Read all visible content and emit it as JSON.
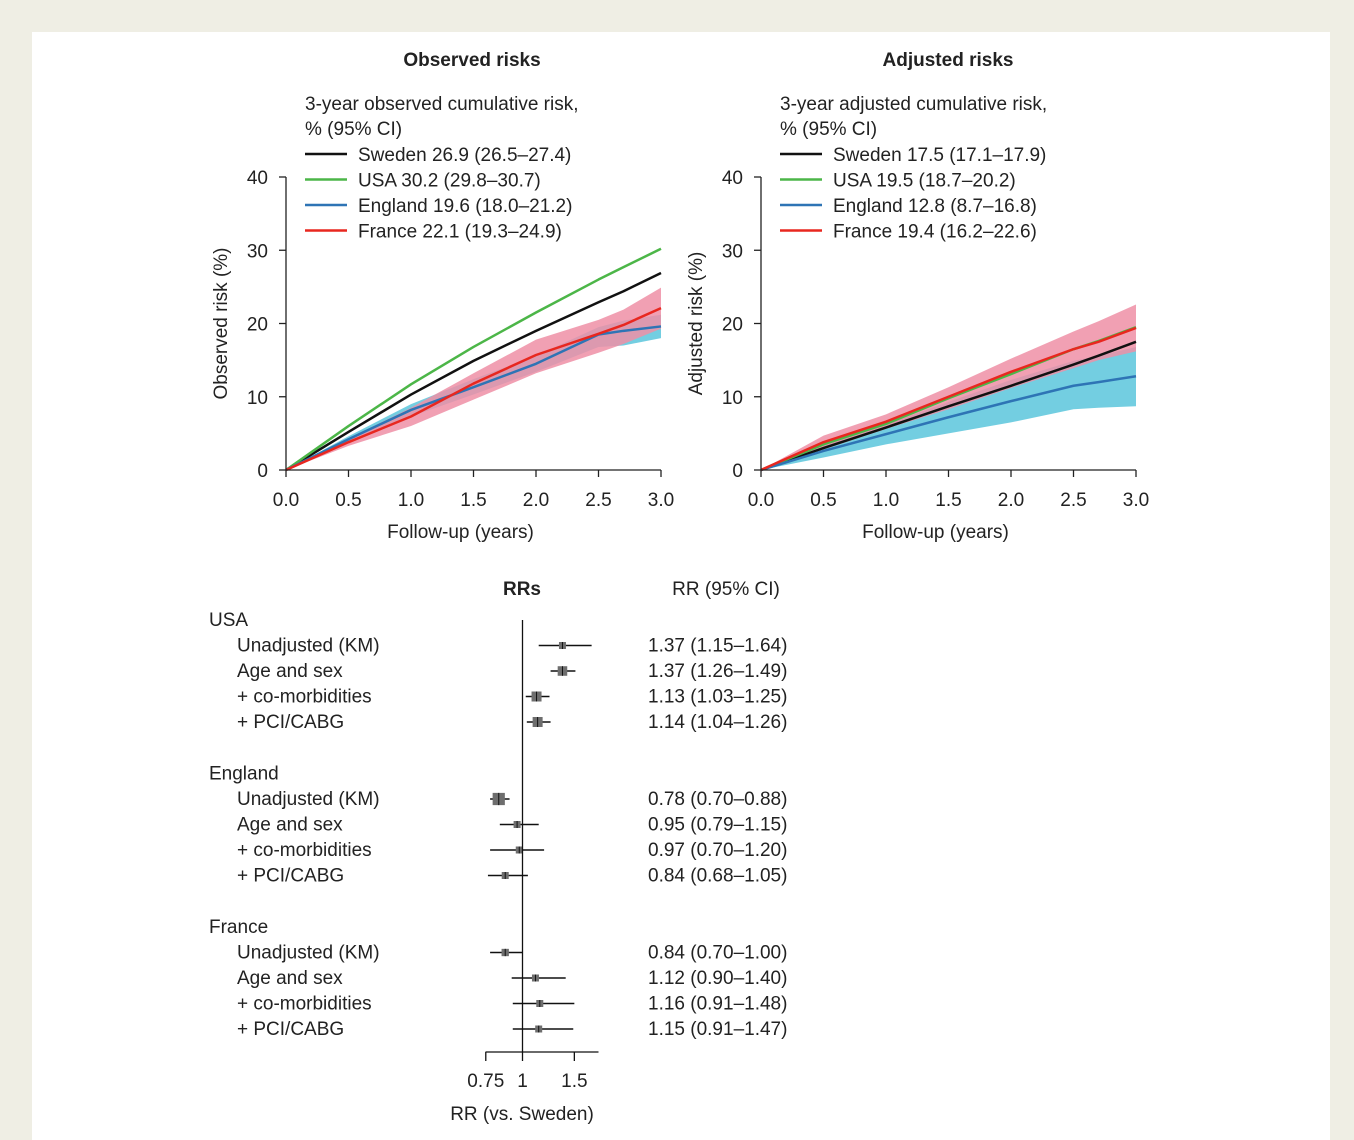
{
  "chart_data": [
    {
      "type": "line",
      "title": "Observed risks",
      "legend_title": "3-year observed cumulative risk, % (95% CI)",
      "xlabel": "Follow-up (years)",
      "ylabel": "Observed risk (%)",
      "xlim": [
        0,
        3
      ],
      "ylim": [
        0,
        40
      ],
      "xticks": [
        "0.0",
        "0.5",
        "1.0",
        "1.5",
        "2.0",
        "2.5",
        "3.0"
      ],
      "yticks": [
        "0",
        "10",
        "20",
        "30",
        "40"
      ],
      "grid": false,
      "legend_position": "top-left",
      "x": [
        0,
        0.5,
        1.0,
        1.5,
        2.0,
        2.5,
        2.7,
        3.0
      ],
      "series": [
        {
          "name": "Sweden",
          "legend": "Sweden 26.9 (26.5–27.4)",
          "color": "#111111",
          "values": [
            0,
            5.2,
            10.3,
            14.9,
            19.0,
            22.9,
            24.4,
            26.9
          ]
        },
        {
          "name": "USA",
          "legend": "USA 30.2 (29.8–30.7)",
          "color": "#4cb648",
          "values": [
            0,
            6.0,
            11.7,
            16.8,
            21.5,
            26.0,
            27.7,
            30.2
          ]
        },
        {
          "name": "England",
          "legend": "England 19.6 (18.0–21.2)",
          "color": "#2e74b5",
          "values": [
            0,
            4.2,
            8.2,
            11.3,
            14.5,
            18.5,
            19.0,
            19.6
          ],
          "lower": [
            0,
            3.8,
            7.3,
            10.3,
            13.4,
            16.8,
            17.0,
            18.0
          ],
          "upper": [
            0,
            4.6,
            9.0,
            12.4,
            15.6,
            19.5,
            20.4,
            21.2
          ],
          "band_color": "#5bc5dc"
        },
        {
          "name": "France",
          "legend": "France 22.1 (19.3–24.9)",
          "color": "#e8271f",
          "values": [
            0,
            3.8,
            7.3,
            11.8,
            15.7,
            18.6,
            19.8,
            22.1
          ],
          "lower": [
            0,
            3.3,
            6.0,
            9.6,
            13.2,
            16.0,
            17.2,
            19.3
          ],
          "upper": [
            0,
            4.3,
            8.5,
            13.2,
            17.8,
            20.5,
            21.9,
            24.9
          ],
          "band_color": "#ef8fa6"
        }
      ]
    },
    {
      "type": "line",
      "title": "Adjusted risks",
      "legend_title": "3-year adjusted cumulative risk, % (95% CI)",
      "xlabel": "Follow-up (years)",
      "ylabel": "Adjusted risk (%)",
      "xlim": [
        0,
        3
      ],
      "ylim": [
        0,
        40
      ],
      "xticks": [
        "0.0",
        "0.5",
        "1.0",
        "1.5",
        "2.0",
        "2.5",
        "3.0"
      ],
      "yticks": [
        "0",
        "10",
        "20",
        "30",
        "40"
      ],
      "grid": false,
      "legend_position": "top-left",
      "x": [
        0,
        0.5,
        1.0,
        1.5,
        2.0,
        2.5,
        2.7,
        3.0
      ],
      "series": [
        {
          "name": "Sweden",
          "legend": "Sweden 17.5 (17.1–17.9)",
          "color": "#111111",
          "values": [
            0,
            3.0,
            5.8,
            8.7,
            11.5,
            14.4,
            15.6,
            17.5
          ]
        },
        {
          "name": "USA",
          "legend": "USA 19.5 (18.7–20.2)",
          "color": "#4cb648",
          "values": [
            0,
            3.5,
            6.3,
            9.8,
            13.1,
            16.5,
            17.6,
            19.5
          ]
        },
        {
          "name": "England",
          "legend": "England 12.8 (8.7–16.8)",
          "color": "#2e74b5",
          "values": [
            0,
            2.6,
            4.9,
            7.2,
            9.4,
            11.5,
            12.0,
            12.8
          ],
          "lower": [
            0,
            1.7,
            3.5,
            5.0,
            6.5,
            8.3,
            8.5,
            8.7
          ],
          "upper": [
            0,
            3.3,
            6.2,
            9.3,
            12.3,
            14.9,
            15.6,
            16.8
          ],
          "band_color": "#5bc5dc"
        },
        {
          "name": "France",
          "legend": "France 19.4 (16.2–22.6)",
          "color": "#e8271f",
          "values": [
            0,
            3.8,
            6.6,
            10.0,
            13.4,
            16.5,
            17.5,
            19.4
          ],
          "lower": [
            0,
            2.8,
            5.6,
            8.3,
            11.2,
            13.9,
            15.0,
            16.2
          ],
          "upper": [
            0,
            4.7,
            7.6,
            11.3,
            15.2,
            18.9,
            20.3,
            22.6
          ],
          "band_color": "#ef8fa6"
        }
      ]
    },
    {
      "type": "forest",
      "title": "RRs",
      "ci_header": "RR (95% CI)",
      "xlabel": "RR (vs. Sweden)",
      "xticks": [
        "0.75",
        "1",
        "1.5"
      ],
      "reference": 1,
      "groups": [
        {
          "name": "USA",
          "rows": [
            {
              "label": "Unadjusted (KM)",
              "rr": 1.37,
              "lo": 1.15,
              "hi": 1.64,
              "text": "1.37 (1.15–1.64)"
            },
            {
              "label": "Age and sex",
              "rr": 1.37,
              "lo": 1.26,
              "hi": 1.49,
              "text": "1.37 (1.26–1.49)"
            },
            {
              "label": "+ co-morbidities",
              "rr": 1.13,
              "lo": 1.03,
              "hi": 1.25,
              "text": "1.13 (1.03–1.25)"
            },
            {
              "label": "+ PCI/CABG",
              "rr": 1.14,
              "lo": 1.04,
              "hi": 1.26,
              "text": "1.14 (1.04–1.26)"
            }
          ]
        },
        {
          "name": "England",
          "rows": [
            {
              "label": "Unadjusted (KM)",
              "rr": 0.78,
              "lo": 0.7,
              "hi": 0.88,
              "text": "0.78 (0.70–0.88)"
            },
            {
              "label": "Age and sex",
              "rr": 0.95,
              "lo": 0.79,
              "hi": 1.15,
              "text": "0.95 (0.79–1.15)"
            },
            {
              "label": "+ co-morbidities",
              "rr": 0.97,
              "lo": 0.7,
              "hi": 1.2,
              "text": "0.97 (0.70–1.20)"
            },
            {
              "label": "+ PCI/CABG",
              "rr": 0.84,
              "lo": 0.68,
              "hi": 1.05,
              "text": "0.84 (0.68–1.05)"
            }
          ]
        },
        {
          "name": "France",
          "rows": [
            {
              "label": "Unadjusted (KM)",
              "rr": 0.84,
              "lo": 0.7,
              "hi": 1.0,
              "text": "0.84 (0.70–1.00)"
            },
            {
              "label": "Age and sex",
              "rr": 1.12,
              "lo": 0.9,
              "hi": 1.4,
              "text": "1.12 (0.90–1.40)"
            },
            {
              "label": "+ co-morbidities",
              "rr": 1.16,
              "lo": 0.91,
              "hi": 1.48,
              "text": "1.16 (0.91–1.48)"
            },
            {
              "label": "+ PCI/CABG",
              "rr": 1.15,
              "lo": 0.91,
              "hi": 1.47,
              "text": "1.15 (0.91–1.47)"
            }
          ]
        }
      ]
    }
  ]
}
